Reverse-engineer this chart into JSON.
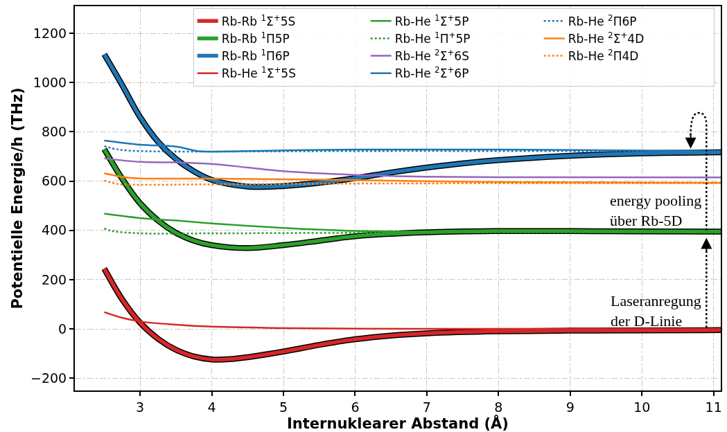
{
  "chart_data": {
    "type": "line",
    "xlabel": "Internuklearer Abstand (Å)",
    "ylabel": "Potentielle Energie/h (THz)",
    "xlim": [
      2.09,
      11.1
    ],
    "xticks": [
      3,
      4,
      5,
      6,
      7,
      8,
      9,
      10,
      11
    ],
    "ylim": [
      -250,
      1310
    ],
    "yticks": [
      {
        "value": -200,
        "label": "−200"
      },
      0,
      200,
      400,
      600,
      800,
      1000,
      1200
    ],
    "grid": true,
    "legend": "top right",
    "marker": "none",
    "annotations": [
      "energy pooling\nüber Rb-5D",
      "Laseranregung\nder D-Linie"
    ],
    "series": [
      {
        "name": "Rb-Rb $^{1}$Σ$^{+}$5S",
        "color": "#d62728",
        "x": [
          2.5,
          2.75,
          3,
          3.25,
          3.5,
          3.75,
          4,
          4.25,
          4.5,
          5,
          5.5,
          6,
          6.5,
          7,
          8,
          9,
          10,
          11.1
        ],
        "values": [
          245,
          120,
          25,
          -40,
          -85,
          -112,
          -124,
          -123,
          -115,
          -92,
          -65,
          -42,
          -27,
          -18,
          -10,
          -7,
          -6,
          -5
        ]
      },
      {
        "name": "Rb-Rb $^{1}$Π5P",
        "color": "#2ca02c",
        "x": [
          2.5,
          2.75,
          3,
          3.25,
          3.5,
          3.75,
          4,
          4.5,
          5,
          5.5,
          6,
          7,
          8,
          9,
          10,
          11.1
        ],
        "values": [
          730,
          610,
          510,
          440,
          390,
          358,
          340,
          328,
          340,
          358,
          376,
          392,
          397,
          397,
          396,
          395
        ]
      },
      {
        "name": "Rb-Rb $^{1}$Π6P",
        "color": "#1f77b4",
        "x": [
          2.5,
          2.75,
          3,
          3.25,
          3.5,
          3.75,
          4,
          4.5,
          5,
          5.5,
          6,
          6.5,
          7,
          7.5,
          8,
          9,
          10,
          11.1
        ],
        "values": [
          1115,
          990,
          860,
          760,
          690,
          640,
          605,
          578,
          580,
          593,
          612,
          635,
          655,
          672,
          685,
          703,
          713,
          717
        ]
      },
      {
        "name": "Rb-He $^{1}$Σ$^{+}$5S",
        "color": "#d62728",
        "line_style": "solid",
        "x": [
          2.5,
          2.75,
          3,
          3.5,
          4,
          5,
          6,
          7,
          8,
          11.1
        ],
        "values": [
          68,
          45,
          30,
          17,
          9,
          3,
          1,
          0,
          0,
          0
        ]
      },
      {
        "name": "Rb-He $^{1}$Σ$^{+}$5P",
        "color": "#2ca02c",
        "line_style": "solid",
        "x": [
          2.5,
          3,
          3.5,
          4,
          5,
          6,
          7,
          8,
          11.1
        ],
        "values": [
          468,
          450,
          440,
          428,
          410,
          398,
          395,
          395,
          394
        ]
      },
      {
        "name": "Rb-He $^{1}$Π$^{+}$5P",
        "color": "#2ca02c",
        "line_style": "dotted",
        "x": [
          2.5,
          2.6,
          3,
          4,
          6,
          8,
          11.1
        ],
        "values": [
          408,
          398,
          388,
          388,
          390,
          392,
          392
        ]
      },
      {
        "name": "Rb-He $^{2}$Σ$^{+}$6S",
        "color": "#9467bd",
        "line_style": "solid",
        "x": [
          2.5,
          3,
          3.5,
          4,
          4.5,
          5,
          6,
          7,
          8,
          11.1
        ],
        "values": [
          692,
          678,
          676,
          670,
          655,
          640,
          625,
          618,
          616,
          615
        ]
      },
      {
        "name": "Rb-He $^{2}$Σ$^{+}$6P",
        "color": "#1f77b4",
        "line_style": "solid",
        "x": [
          2.5,
          3,
          3.5,
          3.8,
          4,
          5,
          6,
          8,
          11.1
        ],
        "values": [
          765,
          748,
          740,
          722,
          720,
          725,
          728,
          728,
          722
        ]
      },
      {
        "name": "Rb-He $^{2}$Π6P",
        "color": "#1f77b4",
        "line_style": "dotted",
        "x": [
          2.5,
          2.7,
          3,
          4,
          6,
          8,
          11.1
        ],
        "values": [
          742,
          728,
          722,
          720,
          722,
          722,
          720
        ]
      },
      {
        "name": "Rb-He $^{2}$Σ$^{+}$4D",
        "color": "#ff7f0e",
        "line_style": "solid",
        "x": [
          2.5,
          2.8,
          3,
          4,
          6,
          8,
          11.1
        ],
        "values": [
          632,
          615,
          611,
          610,
          604,
          596,
          593
        ]
      },
      {
        "name": "Rb-He $^{2}$Π4D",
        "color": "#ff7f0e",
        "line_style": "dotted",
        "x": [
          2.5,
          2.7,
          3,
          4,
          6,
          8,
          11.1
        ],
        "values": [
          602,
          588,
          585,
          587,
          590,
          591,
          591
        ]
      }
    ]
  }
}
